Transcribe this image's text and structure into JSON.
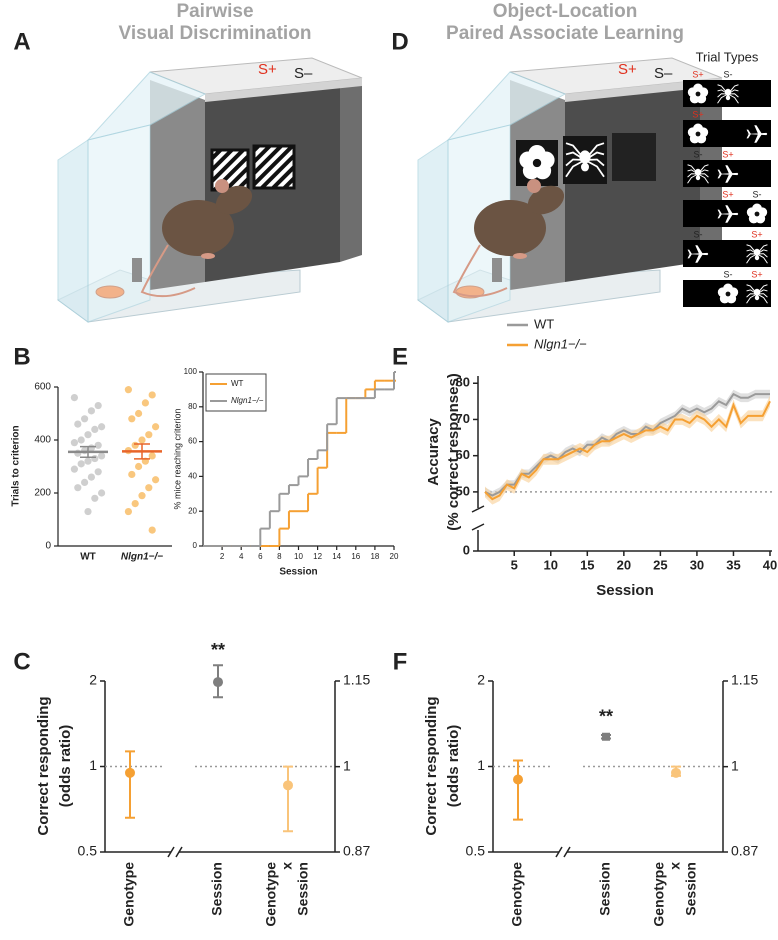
{
  "panel_labels": [
    "A",
    "B",
    "C",
    "D",
    "E",
    "F"
  ],
  "illustrations": {
    "A": {
      "title": [
        "Pairwise",
        "Visual Discrimination"
      ],
      "s_plus": "S+",
      "s_minus": "S–",
      "s_plus_color": "#e0301e"
    },
    "D": {
      "title": [
        "Object-Location",
        "Paired Associate Learning"
      ],
      "s_plus": "S+",
      "s_minus": "S–",
      "s_plus_color": "#e0301e",
      "trial_types_title": "Trial Types",
      "trial_types": [
        [
          "S+",
          "S-",
          null
        ],
        [
          "S+",
          null,
          null
        ],
        [
          "S-",
          "S+",
          null
        ],
        [
          null,
          "S+",
          "S-"
        ],
        [
          "S-",
          null,
          "S+"
        ],
        [
          null,
          "S-",
          "S+"
        ]
      ]
    }
  },
  "chart_data": [
    {
      "type": "strip",
      "ylabel": "Trials to criterion",
      "categories": [
        "WT",
        "Nlgn1−/−"
      ],
      "ylim": [
        0,
        600
      ],
      "yticks": [
        0,
        200,
        400,
        600
      ],
      "groups": [
        {
          "color": "#cfcfcf",
          "mean_color": "#8a8a8a",
          "mean": 355,
          "sem": 20,
          "values": [
            560,
            530,
            510,
            480,
            460,
            450,
            440,
            420,
            400,
            390,
            380,
            370,
            360,
            350,
            340,
            330,
            320,
            310,
            290,
            280,
            260,
            240,
            220,
            200,
            180,
            130
          ]
        },
        {
          "color": "#f9c77e",
          "mean_color": "#e8652a",
          "mean": 357,
          "sem": 28,
          "values": [
            590,
            570,
            540,
            500,
            480,
            450,
            420,
            400,
            380,
            360,
            340,
            320,
            300,
            270,
            250,
            220,
            190,
            160,
            130,
            60
          ]
        }
      ]
    },
    {
      "type": "step",
      "xlabel": "Session",
      "ylabel": "% mice reaching criterion",
      "x": [
        0,
        1,
        2,
        3,
        4,
        5,
        6,
        7,
        8,
        9,
        10,
        11,
        12,
        13,
        14,
        15,
        16,
        17,
        18,
        19,
        20
      ],
      "xlim": [
        0,
        20
      ],
      "xticks": [
        2,
        4,
        6,
        8,
        10,
        12,
        14,
        16,
        18,
        20
      ],
      "ylim": [
        0,
        100
      ],
      "yticks": [
        0,
        20,
        40,
        60,
        80,
        100
      ],
      "legend": "upper left",
      "series": [
        {
          "name": "WT",
          "color": "#f5a033",
          "values": [
            0,
            0,
            0,
            0,
            0,
            0,
            0,
            0,
            10,
            20,
            20,
            30,
            45,
            65,
            65,
            85,
            85,
            90,
            95,
            95,
            95
          ]
        },
        {
          "name": "Nlgn1−/−",
          "color": "#9a9a9a",
          "values": [
            0,
            0,
            0,
            0,
            0,
            0,
            10,
            20,
            30,
            35,
            40,
            50,
            55,
            70,
            85,
            85,
            85,
            85,
            90,
            90,
            100
          ]
        }
      ]
    },
    {
      "type": "line",
      "xlabel": "Session",
      "ylabel": [
        "Accuracy",
        "(% correct responses)"
      ],
      "x": [
        1,
        2,
        3,
        4,
        5,
        6,
        7,
        8,
        9,
        10,
        11,
        12,
        13,
        14,
        15,
        16,
        17,
        18,
        19,
        20,
        21,
        22,
        23,
        24,
        25,
        26,
        27,
        28,
        29,
        30,
        31,
        32,
        33,
        34,
        35,
        36,
        37,
        38,
        39,
        40
      ],
      "xlim": [
        1,
        40
      ],
      "xticks": [
        5,
        10,
        15,
        20,
        25,
        30,
        35,
        40
      ],
      "ylim": [
        0,
        82
      ],
      "yticks": [
        0,
        50,
        60,
        70,
        80
      ],
      "reference_line": 50,
      "legend": "upper left",
      "series": [
        {
          "name": "WT",
          "color": "#9a9a9a",
          "band_color": "#cfcfcf",
          "sem": 1.2,
          "values": [
            50,
            49,
            50,
            52,
            52,
            55,
            55,
            57,
            59,
            60,
            59,
            61,
            62,
            61,
            63,
            63,
            65,
            64,
            66,
            67,
            66,
            66,
            68,
            67,
            69,
            70,
            71,
            73,
            72,
            73,
            72,
            73,
            75,
            74,
            77,
            76,
            76,
            77,
            77,
            77
          ]
        },
        {
          "name": "Nlgn1−/−",
          "color": "#f5a033",
          "band_color": "#f9d29c",
          "sem": 1.5,
          "values": [
            50,
            48,
            49,
            52,
            51,
            55,
            54,
            56,
            59,
            59,
            59,
            60,
            61,
            62,
            61,
            63,
            64,
            64,
            65,
            66,
            65,
            66,
            67,
            67,
            68,
            67,
            70,
            70,
            69,
            71,
            70,
            68,
            70,
            68,
            74,
            69,
            71,
            71,
            71,
            75
          ]
        }
      ]
    },
    {
      "type": "errorbar",
      "ylabel": [
        "Correct responding",
        "(odds ratio)"
      ],
      "categories": [
        [
          "Genotype"
        ],
        [
          "Session"
        ],
        [
          "Genotype",
          "x",
          "Session"
        ]
      ],
      "values": [
        0.95,
        1.148,
        0.97
      ],
      "ci_low": [
        0.66,
        1.12,
        0.9
      ],
      "ci_high": [
        1.13,
        1.18,
        1.0
      ],
      "axis": [
        "y",
        "y2",
        "y2"
      ],
      "markers": [
        "circle",
        "circle",
        "circle"
      ],
      "colors": [
        "#f5a033",
        "#7f7f7f",
        "#f9c47a"
      ],
      "annotations": [
        null,
        "**",
        null
      ],
      "log_scale": true,
      "ylim": [
        0.5,
        2
      ],
      "yticks": [
        0.5,
        1,
        2
      ],
      "y2lim": [
        0.87,
        1.15
      ],
      "y2ticks": [
        0.87,
        1,
        1.15
      ],
      "reference_line": 1
    },
    {
      "type": "errorbar",
      "ylabel": [
        "Correct responding",
        "(odds ratio)"
      ],
      "categories": [
        [
          "Genotype"
        ],
        [
          "Session"
        ],
        [
          "Genotype",
          "x",
          "Session"
        ]
      ],
      "values": [
        0.9,
        1.05,
        0.99
      ],
      "ci_low": [
        0.65,
        1.047,
        0.985
      ],
      "ci_high": [
        1.05,
        1.053,
        1.0
      ],
      "axis": [
        "y",
        "y2",
        "y2"
      ],
      "markers": [
        "circle",
        "square",
        "circle"
      ],
      "colors": [
        "#f5a033",
        "#7f7f7f",
        "#f9c47a"
      ],
      "annotations": [
        null,
        "**",
        null
      ],
      "log_scale": true,
      "ylim": [
        0.5,
        2
      ],
      "yticks": [
        0.5,
        1,
        2
      ],
      "y2lim": [
        0.87,
        1.15
      ],
      "y2ticks": [
        0.87,
        1,
        1.15
      ],
      "reference_line": 1
    }
  ]
}
